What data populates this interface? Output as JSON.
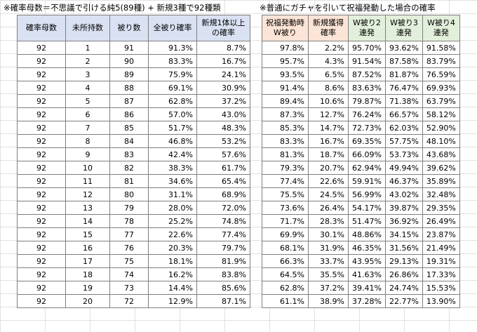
{
  "titles": {
    "left": "※確率母数＝不思議で引ける純5(89種) + 新規3種で92種類",
    "right": "※普通にガチャを引いて祝福発動した場合の確率"
  },
  "tableA": {
    "headers": [
      "確率母数",
      "未所持数",
      "被り数",
      "全被り確率",
      "新規1体以上の確率"
    ],
    "rows": [
      [
        "92",
        "1",
        "91",
        "91.3%",
        "8.7%"
      ],
      [
        "92",
        "2",
        "90",
        "83.3%",
        "16.7%"
      ],
      [
        "92",
        "3",
        "89",
        "75.9%",
        "24.1%"
      ],
      [
        "92",
        "4",
        "88",
        "69.1%",
        "30.9%"
      ],
      [
        "92",
        "5",
        "87",
        "62.8%",
        "37.2%"
      ],
      [
        "92",
        "6",
        "86",
        "57.0%",
        "43.0%"
      ],
      [
        "92",
        "7",
        "85",
        "51.7%",
        "48.3%"
      ],
      [
        "92",
        "8",
        "84",
        "46.8%",
        "53.2%"
      ],
      [
        "92",
        "9",
        "83",
        "42.4%",
        "57.6%"
      ],
      [
        "92",
        "10",
        "82",
        "38.3%",
        "61.7%"
      ],
      [
        "92",
        "11",
        "81",
        "34.6%",
        "65.4%"
      ],
      [
        "92",
        "12",
        "80",
        "31.1%",
        "68.9%"
      ],
      [
        "92",
        "13",
        "79",
        "28.0%",
        "72.0%"
      ],
      [
        "92",
        "14",
        "78",
        "25.2%",
        "74.8%"
      ],
      [
        "92",
        "15",
        "77",
        "22.6%",
        "77.4%"
      ],
      [
        "92",
        "16",
        "76",
        "20.3%",
        "79.7%"
      ],
      [
        "92",
        "17",
        "75",
        "18.1%",
        "81.9%"
      ],
      [
        "92",
        "18",
        "74",
        "16.2%",
        "83.8%"
      ],
      [
        "92",
        "19",
        "73",
        "14.4%",
        "85.6%"
      ],
      [
        "92",
        "20",
        "72",
        "12.9%",
        "87.1%"
      ]
    ]
  },
  "tableB": {
    "headers": [
      "祝福発動時W被り",
      "新規獲得確率",
      "W被り2連発",
      "W被り3連発",
      "W被り4連発"
    ],
    "rows": [
      [
        "97.8%",
        "2.2%",
        "95.70%",
        "93.62%",
        "91.58%"
      ],
      [
        "95.7%",
        "4.3%",
        "91.54%",
        "87.58%",
        "83.79%"
      ],
      [
        "93.5%",
        "6.5%",
        "87.52%",
        "81.87%",
        "76.59%"
      ],
      [
        "91.4%",
        "8.6%",
        "83.63%",
        "76.47%",
        "69.93%"
      ],
      [
        "89.4%",
        "10.6%",
        "79.87%",
        "71.38%",
        "63.79%"
      ],
      [
        "87.3%",
        "12.7%",
        "76.24%",
        "66.57%",
        "58.12%"
      ],
      [
        "85.3%",
        "14.7%",
        "72.73%",
        "62.03%",
        "52.90%"
      ],
      [
        "83.3%",
        "16.7%",
        "69.35%",
        "57.75%",
        "48.10%"
      ],
      [
        "81.3%",
        "18.7%",
        "66.09%",
        "53.73%",
        "43.68%"
      ],
      [
        "79.3%",
        "20.7%",
        "62.94%",
        "49.94%",
        "39.62%"
      ],
      [
        "77.4%",
        "22.6%",
        "59.91%",
        "46.37%",
        "35.89%"
      ],
      [
        "75.5%",
        "24.5%",
        "56.99%",
        "43.02%",
        "32.48%"
      ],
      [
        "73.6%",
        "26.4%",
        "54.17%",
        "39.87%",
        "29.35%"
      ],
      [
        "71.7%",
        "28.3%",
        "51.47%",
        "36.92%",
        "26.49%"
      ],
      [
        "69.9%",
        "30.1%",
        "48.86%",
        "34.15%",
        "23.87%"
      ],
      [
        "68.1%",
        "31.9%",
        "46.35%",
        "31.56%",
        "21.49%"
      ],
      [
        "66.3%",
        "33.7%",
        "43.95%",
        "29.13%",
        "19.31%"
      ],
      [
        "64.5%",
        "35.5%",
        "41.63%",
        "26.86%",
        "17.33%"
      ],
      [
        "62.8%",
        "37.2%",
        "39.41%",
        "24.74%",
        "15.53%"
      ],
      [
        "61.1%",
        "38.9%",
        "37.28%",
        "22.77%",
        "13.90%"
      ]
    ]
  },
  "colors": {
    "headerBlue": "#d9e1f2",
    "headerOrange": "#fce4d6",
    "headerGreen": "#e2efda",
    "gridline": "#e1e1e1"
  }
}
